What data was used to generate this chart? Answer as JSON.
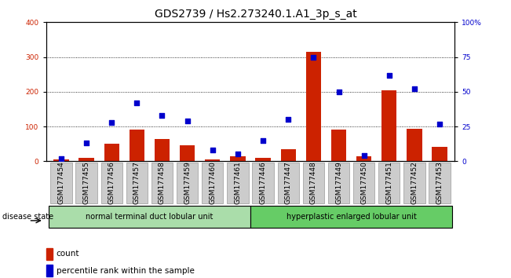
{
  "title": "GDS2739 / Hs2.273240.1.A1_3p_s_at",
  "samples": [
    "GSM177454",
    "GSM177455",
    "GSM177456",
    "GSM177457",
    "GSM177458",
    "GSM177459",
    "GSM177460",
    "GSM177461",
    "GSM177446",
    "GSM177447",
    "GSM177448",
    "GSM177449",
    "GSM177450",
    "GSM177451",
    "GSM177452",
    "GSM177453"
  ],
  "counts": [
    5,
    10,
    50,
    90,
    65,
    45,
    5,
    15,
    10,
    35,
    315,
    90,
    15,
    205,
    93,
    42
  ],
  "percentiles": [
    2,
    13,
    28,
    42,
    33,
    29,
    8,
    5,
    15,
    30,
    75,
    50,
    4,
    62,
    52,
    27
  ],
  "bar_color": "#cc2200",
  "dot_color": "#0000cc",
  "group1_label": "normal terminal duct lobular unit",
  "group2_label": "hyperplastic enlarged lobular unit",
  "group1_count": 8,
  "group2_count": 8,
  "group1_bg": "#aaddaa",
  "group2_bg": "#66cc66",
  "disease_state_label": "disease state",
  "ylim_left": [
    0,
    400
  ],
  "ylim_right": [
    0,
    100
  ],
  "yticks_left": [
    0,
    100,
    200,
    300,
    400
  ],
  "yticks_right": [
    0,
    25,
    50,
    75,
    100
  ],
  "ytick_labels_right": [
    "0",
    "25",
    "50",
    "75",
    "100%"
  ],
  "legend_count_label": "count",
  "legend_pct_label": "percentile rank within the sample",
  "bg_color": "#ffffff",
  "title_fontsize": 10,
  "tick_fontsize": 6.5,
  "bar_width": 0.6,
  "xtick_bg": "#cccccc"
}
